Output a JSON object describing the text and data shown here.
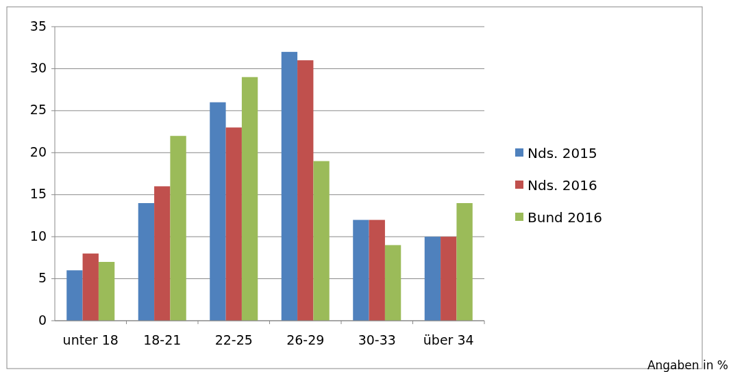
{
  "chart_data": {
    "type": "bar",
    "categories": [
      "unter 18",
      "18-21",
      "22-25",
      "26-29",
      "30-33",
      "über 34"
    ],
    "series": [
      {
        "name": "Nds. 2015",
        "color": "#4f81bd",
        "values": [
          6,
          14,
          26,
          32,
          12,
          10
        ]
      },
      {
        "name": "Nds. 2016",
        "color": "#c0504d",
        "values": [
          8,
          16,
          23,
          31,
          12,
          10
        ]
      },
      {
        "name": "Bund 2016",
        "color": "#9bbb59",
        "values": [
          7,
          22,
          29,
          19,
          9,
          14
        ]
      }
    ],
    "ylim": [
      0,
      35
    ],
    "yticks": [
      0,
      5,
      10,
      15,
      20,
      25,
      30,
      35
    ],
    "grid": "y",
    "legend": "right",
    "annotations": [
      "Angaben in %"
    ]
  }
}
